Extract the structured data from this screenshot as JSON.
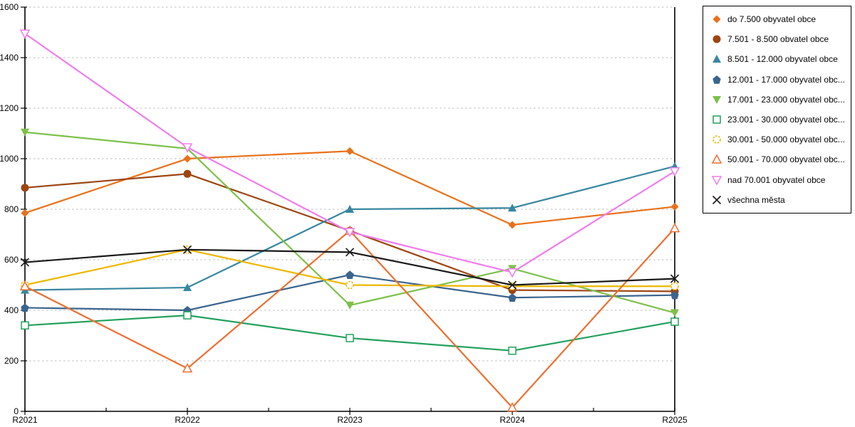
{
  "chart_data": {
    "type": "line",
    "title": "",
    "xlabel": "",
    "ylabel": "",
    "categories": [
      "R2021",
      "R2022",
      "R2023",
      "R2024",
      "R2025"
    ],
    "ylim": [
      0,
      1600
    ],
    "ytick_step": 200,
    "yticks": [
      0,
      200,
      400,
      600,
      800,
      1000,
      1200,
      1400,
      1600
    ],
    "grid": "horizontal-dashed",
    "legend_position": "top-right",
    "series": [
      {
        "label": "do 7.500 obyvatel obce",
        "color": "#e8711a",
        "marker": "diamond",
        "values": [
          785,
          1000,
          1030,
          738,
          810
        ]
      },
      {
        "label": "7.501 - 8.500 obvatel obce",
        "color": "#9c4511",
        "marker": "circle",
        "values": [
          885,
          940,
          715,
          480,
          475
        ]
      },
      {
        "label": "8.501 - 12.000 obyvatel obce",
        "color": "#38879f",
        "marker": "triangle-up",
        "values": [
          480,
          490,
          800,
          805,
          970
        ]
      },
      {
        "label": "12.001 - 17.000 obyvatel obc...",
        "color": "#3b648e",
        "marker": "pentagon",
        "values": [
          410,
          400,
          540,
          450,
          460
        ]
      },
      {
        "label": "17.001 - 23.000 obyvatel obc...",
        "color": "#7ec04a",
        "marker": "triangle-down",
        "values": [
          1105,
          1040,
          420,
          565,
          390
        ]
      },
      {
        "label": "23.001 - 30.000 obyvatel obc...",
        "color": "#21a15c",
        "marker": "square-open",
        "values": [
          340,
          380,
          290,
          240,
          355
        ]
      },
      {
        "label": "30.001 - 50.000 obyvatel obc...",
        "color": "#edb700",
        "marker": "circle-open-dashed",
        "values": [
          500,
          640,
          500,
          495,
          495
        ]
      },
      {
        "label": "50.001 - 70.000 obyvatel obc...",
        "color": "#ec6f30",
        "marker": "triangle-up-open",
        "values": [
          495,
          170,
          715,
          15,
          725
        ]
      },
      {
        "label": "nad 70.001 obyvatel obce",
        "color": "#f07cec",
        "marker": "triangle-down-open",
        "values": [
          1495,
          1045,
          710,
          550,
          950
        ]
      },
      {
        "label": "všechna města",
        "color": "#1a1a1a",
        "marker": "x-cross",
        "values": [
          590,
          640,
          630,
          500,
          525
        ]
      }
    ],
    "style": {
      "background": "#ffffff",
      "grid_color": "#bdbdbd",
      "axis_color": "#000000",
      "tick_label_color": "#000000",
      "legend_border_color": "#000000"
    }
  }
}
